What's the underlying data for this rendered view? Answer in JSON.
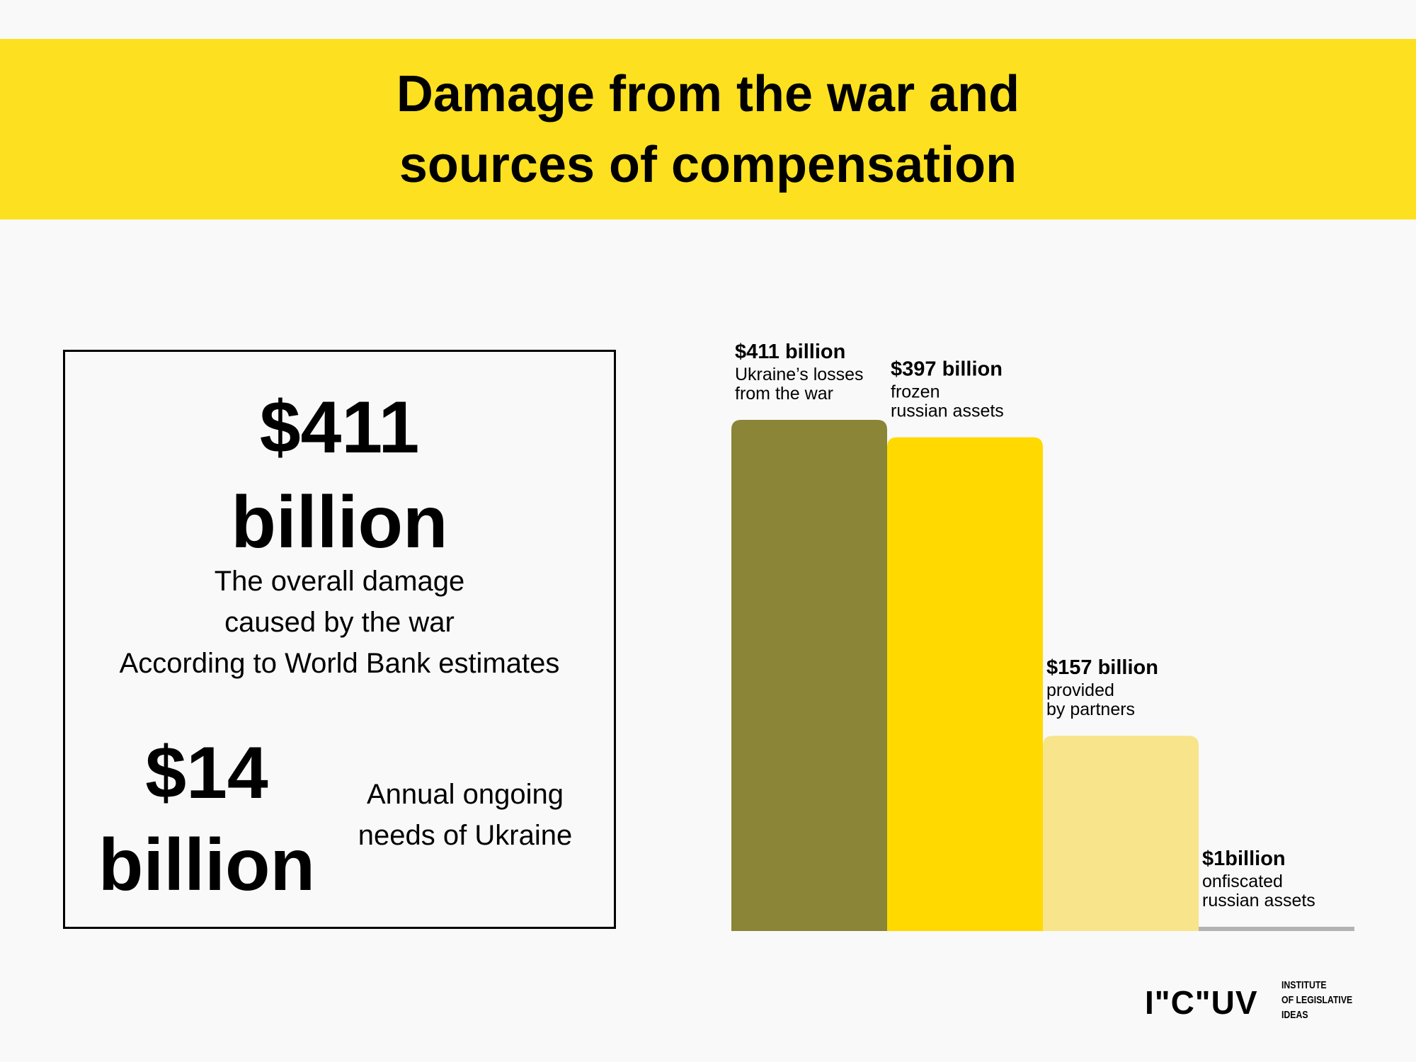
{
  "header": {
    "title_line1": "Damage from the war and",
    "title_line2": "sources of compensation"
  },
  "summary": {
    "damage_value_line1": "$411",
    "damage_value_line2": "billion",
    "damage_desc": [
      "The overall damage",
      "caused by the war",
      "According to World Bank estimates"
    ],
    "annual_value_line1": "$14",
    "annual_value_line2": "billion",
    "annual_desc": [
      "Annual ongoing",
      "needs of Ukraine"
    ]
  },
  "colors": {
    "banner": "#fde020",
    "bars": [
      "#8a8537",
      "#ffd900",
      "#f7e48b",
      "#b3b3b3"
    ]
  },
  "chart_data": {
    "type": "bar",
    "categories": [
      "Ukraine's losses from the war",
      "frozen russian assets",
      "provided by partners",
      "onfiscated russian assets"
    ],
    "values": [
      411,
      397,
      157,
      1
    ],
    "value_labels": [
      "$411 billion",
      "$397 billion",
      "$157 billion",
      "$1billion"
    ],
    "label_lines": [
      [
        "Ukraine’s losses",
        "from the war"
      ],
      [
        "frozen",
        "russian assets"
      ],
      [
        "provided",
        "by partners"
      ],
      [
        "onfiscated",
        "russian assets"
      ]
    ],
    "unit": "billion USD",
    "ylim": [
      0,
      411
    ],
    "grid": false,
    "axes_visible": false
  },
  "footer": {
    "logo_mark": "I\"C\"UV",
    "org_name_lines": [
      "INSTITUTE",
      "OF LEGISLATIVE",
      "IDEAS"
    ]
  }
}
